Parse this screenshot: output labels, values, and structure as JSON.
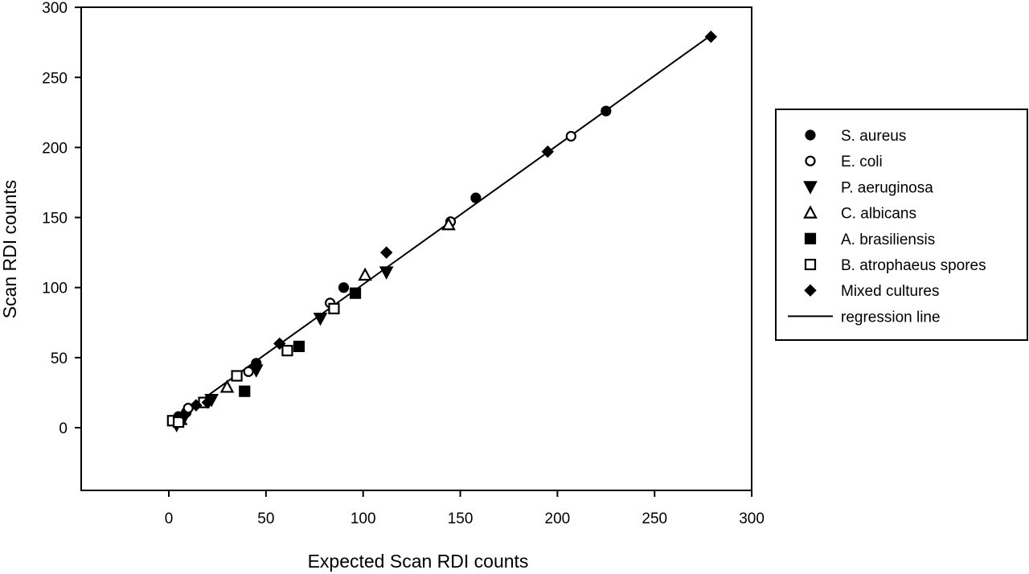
{
  "chart_data": {
    "type": "scatter",
    "title": "",
    "xlabel": "Expected Scan RDI counts",
    "ylabel": "Scan RDI counts",
    "xlim": [
      -45,
      300
    ],
    "ylim": [
      -45,
      300
    ],
    "xticks": [
      0,
      50,
      100,
      150,
      200,
      250,
      300
    ],
    "yticks": [
      0,
      50,
      100,
      150,
      200,
      250,
      300
    ],
    "grid": false,
    "legend_position": "right",
    "series": [
      {
        "name": "S. aureus",
        "marker": "circle-filled",
        "color": "#000000",
        "points": [
          [
            5,
            8
          ],
          [
            9,
            11
          ],
          [
            45,
            46
          ],
          [
            90,
            100
          ],
          [
            158,
            164
          ],
          [
            225,
            226
          ]
        ]
      },
      {
        "name": "E. coli",
        "marker": "circle-open",
        "color": "#000000",
        "points": [
          [
            10,
            14
          ],
          [
            41,
            40
          ],
          [
            83,
            89
          ],
          [
            145,
            147
          ],
          [
            207,
            208
          ]
        ]
      },
      {
        "name": "P. aeruginosa",
        "marker": "triangle-down-filled",
        "color": "#000000",
        "points": [
          [
            4,
            2
          ],
          [
            7,
            5
          ],
          [
            22,
            20
          ],
          [
            45,
            41
          ],
          [
            78,
            78
          ],
          [
            112,
            111
          ]
        ]
      },
      {
        "name": "C. albicans",
        "marker": "triangle-up-open",
        "color": "#000000",
        "points": [
          [
            6,
            6
          ],
          [
            30,
            29
          ],
          [
            101,
            109
          ],
          [
            144,
            145
          ]
        ]
      },
      {
        "name": "A. brasiliensis",
        "marker": "square-filled",
        "color": "#000000",
        "points": [
          [
            39,
            26
          ],
          [
            67,
            58
          ],
          [
            96,
            96
          ]
        ]
      },
      {
        "name": "B. atrophaeus spores",
        "marker": "square-open",
        "color": "#000000",
        "points": [
          [
            2,
            5
          ],
          [
            5,
            4
          ],
          [
            18,
            18
          ],
          [
            35,
            37
          ],
          [
            61,
            55
          ],
          [
            85,
            85
          ]
        ]
      },
      {
        "name": "Mixed cultures",
        "marker": "diamond-filled",
        "color": "#000000",
        "points": [
          [
            8,
            9
          ],
          [
            14,
            16
          ],
          [
            20,
            18
          ],
          [
            57,
            60
          ],
          [
            112,
            125
          ],
          [
            195,
            197
          ],
          [
            279,
            279
          ]
        ]
      }
    ],
    "regression_line": {
      "name": "regression line",
      "from": [
        0,
        3
      ],
      "to": [
        279,
        280
      ]
    }
  }
}
